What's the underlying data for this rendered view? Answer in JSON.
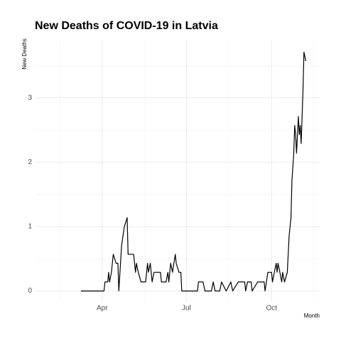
{
  "chart_data": {
    "type": "line",
    "title": "New Deaths of COVID-19 in Latvia",
    "x_label": "Month",
    "y_label": "New Deaths",
    "x": [
      69,
      94,
      95,
      98,
      99,
      100,
      102,
      104,
      107,
      109,
      110,
      113,
      116,
      119,
      120,
      126,
      127,
      128,
      129,
      131,
      134,
      139,
      141,
      142,
      144,
      146,
      148,
      155,
      156,
      161,
      163,
      164,
      166,
      168,
      171,
      172,
      175,
      177,
      178,
      195,
      196,
      201,
      203,
      210,
      212,
      214,
      219,
      221,
      226,
      231,
      233,
      239,
      246,
      247,
      249,
      253,
      254,
      260,
      267,
      268,
      271,
      275,
      276,
      278,
      280,
      281,
      282,
      284,
      286,
      287,
      289,
      292,
      294,
      296,
      297,
      299,
      300,
      301,
      302,
      304,
      305,
      306,
      307,
      309,
      310,
      312
    ],
    "series": [
      {
        "name": "New Deaths",
        "color": "#000000",
        "values": [
          0,
          0,
          0.14,
          0.14,
          0.29,
          0.14,
          0.29,
          0.57,
          0.43,
          0.43,
          0,
          0.71,
          1.0,
          1.14,
          0.57,
          0.57,
          0.43,
          0.29,
          0.43,
          0.29,
          0.14,
          0.14,
          0.43,
          0.29,
          0.43,
          0.14,
          0.29,
          0.29,
          0.14,
          0.14,
          0.29,
          0.14,
          0.43,
          0.29,
          0.57,
          0.43,
          0.29,
          0.29,
          0,
          0,
          0.14,
          0.14,
          0,
          0,
          0.14,
          0,
          0,
          0.14,
          0,
          0.14,
          0,
          0.14,
          0.14,
          0,
          0.14,
          0.14,
          0,
          0.14,
          0.14,
          0,
          0.29,
          0.29,
          0.14,
          0.29,
          0.43,
          0.29,
          0.43,
          0.29,
          0.14,
          0.29,
          0.14,
          0.29,
          0.86,
          1.14,
          1.71,
          2.14,
          2.57,
          2.43,
          2.14,
          2.71,
          2.43,
          2.57,
          2.29,
          3.14,
          3.71,
          3.57
        ]
      }
    ],
    "xlim": [
      20,
      327
    ],
    "xticks": [
      {
        "value": 92,
        "label": "Apr"
      },
      {
        "value": 183,
        "label": "Jul"
      },
      {
        "value": 275,
        "label": "Oct"
      }
    ],
    "ylim": [
      -0.17,
      3.89
    ],
    "yticks": [
      0,
      1,
      2,
      3
    ],
    "grid": true
  }
}
